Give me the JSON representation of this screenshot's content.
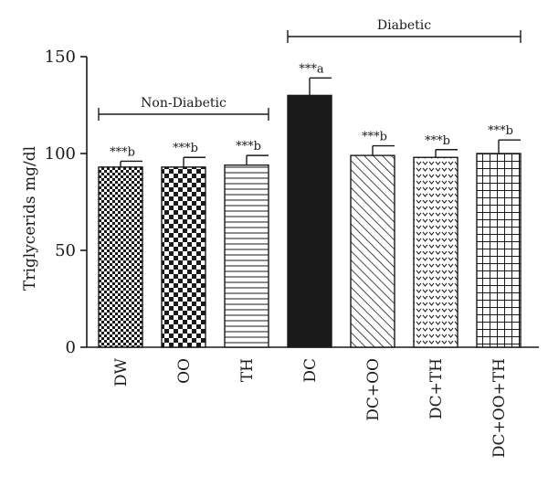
{
  "chart_data": {
    "type": "bar",
    "ylabel": "Triglycerids mg/dl",
    "ylim": [
      0,
      150
    ],
    "yticks": [
      0,
      50,
      100,
      150
    ],
    "grid": false,
    "categories": [
      "DW",
      "OO",
      "TH",
      "DC",
      "DC+OO",
      "DC+TH",
      "DC+OO+TH"
    ],
    "values": [
      93,
      93,
      94,
      130,
      99,
      98,
      100
    ],
    "errors": [
      3,
      5,
      5,
      9,
      5,
      4,
      7
    ],
    "annotations": [
      "***b",
      "***b",
      "***b",
      "***a",
      "***b",
      "***b",
      "***b"
    ],
    "patterns": [
      "fine-checker",
      "checker",
      "horizontal-lines",
      "solid-black",
      "diagonal-lines",
      "v-dots",
      "grid"
    ],
    "groups": [
      {
        "label": "Non-Diabetic",
        "from": 0,
        "to": 2
      },
      {
        "label": "Diabetic",
        "from": 3,
        "to": 6
      }
    ],
    "bar_color": "#1a1a1a"
  }
}
